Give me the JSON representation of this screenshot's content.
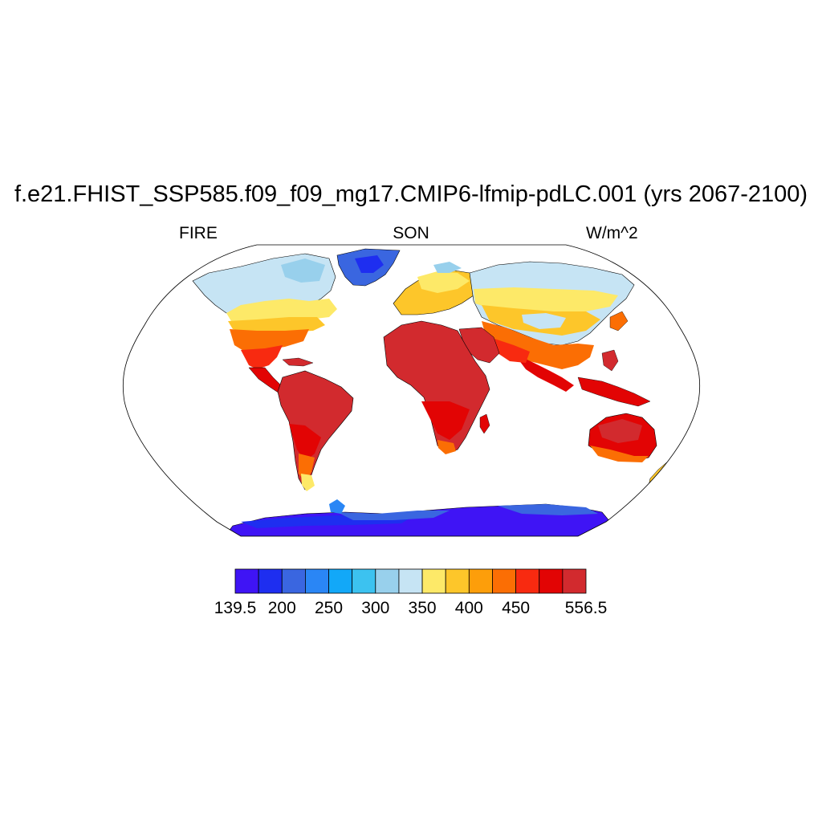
{
  "title": "f.e21.FHIST_SSP585.f09_f09_mg17.CMIP6-lfmip-pdLC.001 (yrs 2067-2100)",
  "left_string": "FIRE",
  "center_string": "SON",
  "right_string": "W/m^2",
  "projection": "Robinson",
  "colorbar": {
    "colors": [
      "#3f14f5",
      "#1e2ef0",
      "#3a66e0",
      "#2a86f5",
      "#12a8f8",
      "#3cc2f0",
      "#98d0ec",
      "#c6e4f4",
      "#fde968",
      "#fdc62a",
      "#fd9e0a",
      "#fb6e04",
      "#f82a10",
      "#e20404",
      "#d22a2e"
    ],
    "labels": [
      "139.5",
      "200",
      "250",
      "300",
      "350",
      "400",
      "450",
      "556.5"
    ],
    "label_boxes": [
      0,
      2,
      4,
      6,
      8,
      10,
      12,
      15
    ]
  }
}
